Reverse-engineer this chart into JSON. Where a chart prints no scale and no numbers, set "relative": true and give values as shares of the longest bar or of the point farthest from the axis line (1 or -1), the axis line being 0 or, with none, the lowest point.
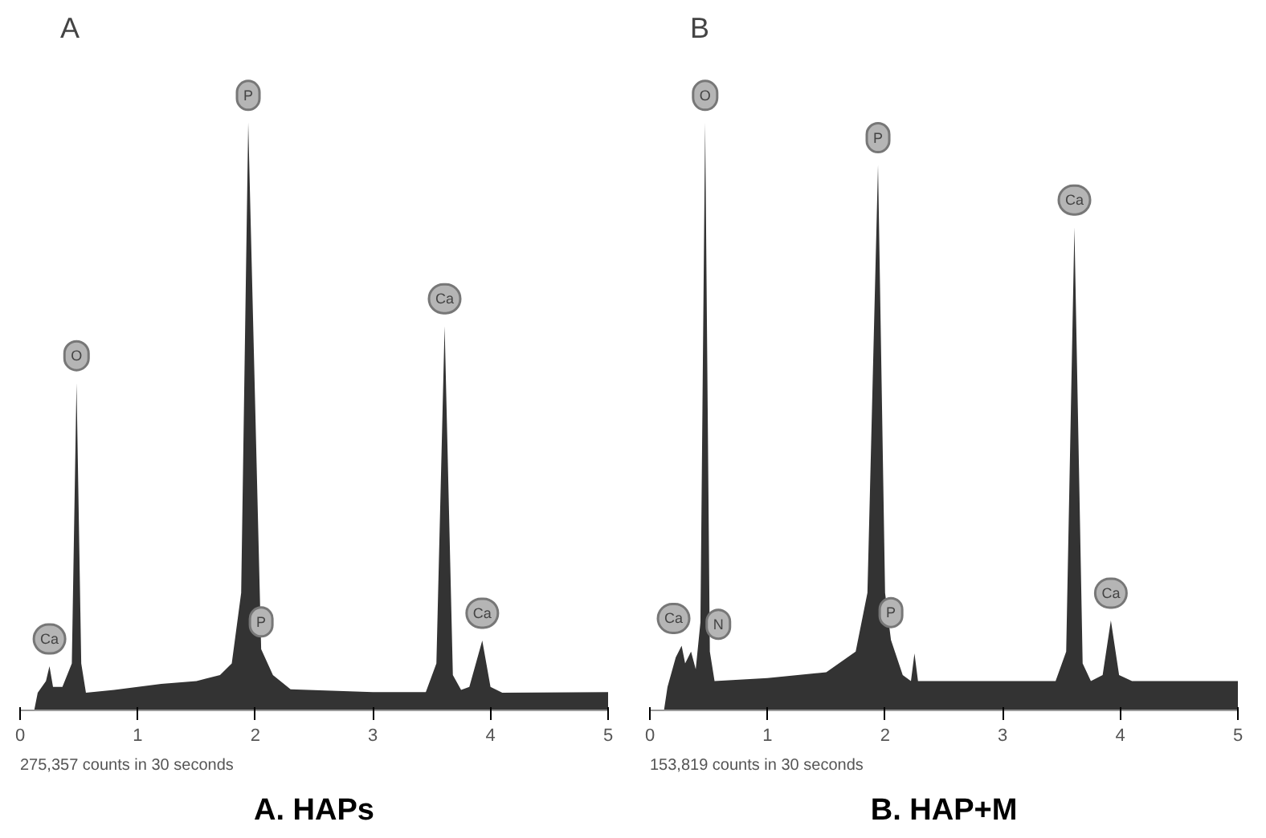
{
  "chart_data": [
    {
      "type": "area",
      "title": "A",
      "relative": true,
      "xlim": [
        0,
        5
      ],
      "xticks": [
        0,
        1,
        2,
        3,
        4,
        5
      ],
      "grid": false,
      "series": [
        {
          "color": "#333333",
          "x": [
            0,
            0.12,
            0.15,
            0.22,
            0.25,
            0.28,
            0.36,
            0.44,
            0.48,
            0.52,
            0.56,
            0.8,
            1.2,
            1.5,
            1.7,
            1.8,
            1.88,
            1.94,
            2.05,
            2.15,
            2.3,
            3.0,
            3.45,
            3.54,
            3.61,
            3.68,
            3.75,
            3.82,
            3.93,
            4.0,
            4.1,
            5.0
          ],
          "values": [
            0,
            0,
            0.03,
            0.05,
            0.075,
            0.04,
            0.04,
            0.08,
            0.557,
            0.08,
            0.03,
            0.035,
            0.045,
            0.05,
            0.06,
            0.08,
            0.2,
            1,
            0.104,
            0.06,
            0.036,
            0.031,
            0.031,
            0.08,
            0.654,
            0.06,
            0.035,
            0.04,
            0.119,
            0.04,
            0.03,
            0.031
          ]
        }
      ],
      "annotations": [
        "275,357 counts in 30 seconds",
        "A. HAPs",
        {
          "text": "Ca",
          "x": 0.25,
          "y": 0.075
        },
        {
          "text": "O",
          "x": 0.48,
          "y": 0.557
        },
        {
          "text": "P",
          "x": 1.94,
          "y": 1
        },
        {
          "text": "P",
          "x": 2.05,
          "y": 0.104
        },
        {
          "text": "Ca",
          "x": 3.61,
          "y": 0.654
        },
        {
          "text": "Ca",
          "x": 3.93,
          "y": 0.119
        }
      ]
    },
    {
      "type": "area",
      "title": "B",
      "relative": true,
      "xlim": [
        0,
        5
      ],
      "xticks": [
        0,
        1,
        2,
        3,
        4,
        5
      ],
      "grid": false,
      "series": [
        {
          "color": "#333333",
          "x": [
            0,
            0.12,
            0.15,
            0.22,
            0.27,
            0.3,
            0.35,
            0.39,
            0.43,
            0.47,
            0.51,
            0.55,
            1.0,
            1.5,
            1.75,
            1.85,
            1.94,
            2.0,
            2.05,
            2.15,
            2.22,
            2.25,
            2.28,
            3.0,
            3.45,
            3.54,
            3.61,
            3.68,
            3.75,
            3.85,
            3.92,
            3.99,
            4.1,
            5.0
          ],
          "values": [
            0,
            0,
            0.04,
            0.09,
            0.11,
            0.08,
            0.1,
            0.07,
            0.15,
            1,
            0.1,
            0.05,
            0.055,
            0.065,
            0.1,
            0.2,
            0.928,
            0.2,
            0.12,
            0.06,
            0.05,
            0.097,
            0.05,
            0.05,
            0.05,
            0.1,
            0.822,
            0.08,
            0.05,
            0.06,
            0.153,
            0.06,
            0.05,
            0.05
          ]
        }
      ],
      "annotations": [
        "153,819 counts in 30 seconds",
        "B. HAP+M",
        {
          "text": "Ca",
          "x": 0.27,
          "y": 0.11
        },
        {
          "text": "N",
          "x": 0.35,
          "y": 0.1
        },
        {
          "text": "O",
          "x": 0.47,
          "y": 1
        },
        {
          "text": "P",
          "x": 1.94,
          "y": 0.928
        },
        {
          "text": "P",
          "x": 2.05,
          "y": 0.12
        },
        {
          "text": "Ca",
          "x": 3.61,
          "y": 0.822
        },
        {
          "text": "Ca",
          "x": 3.92,
          "y": 0.153
        }
      ]
    }
  ]
}
